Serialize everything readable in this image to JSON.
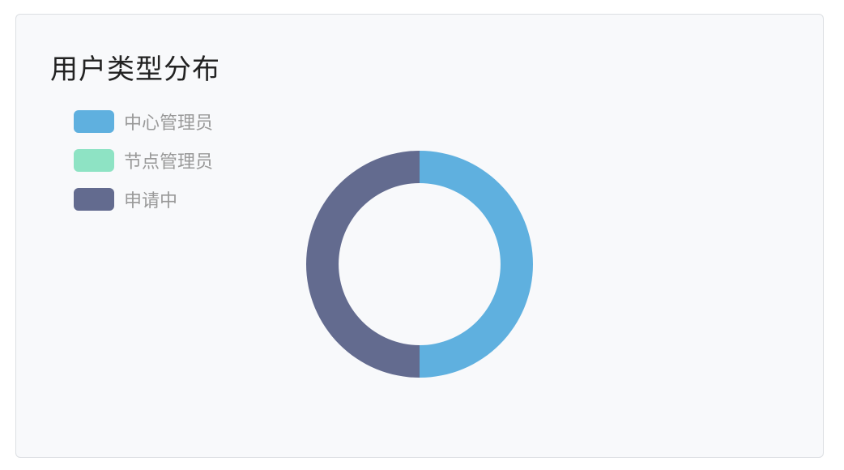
{
  "chart_data": {
    "type": "pie",
    "variant": "donut",
    "title": "用户类型分布",
    "legend_position": "top-left",
    "categories": [
      "中心管理员",
      "节点管理员",
      "申请中"
    ],
    "values": [
      1,
      0,
      1
    ],
    "colors": [
      "#5fb0df",
      "#8ee3c4",
      "#636b8f"
    ]
  }
}
